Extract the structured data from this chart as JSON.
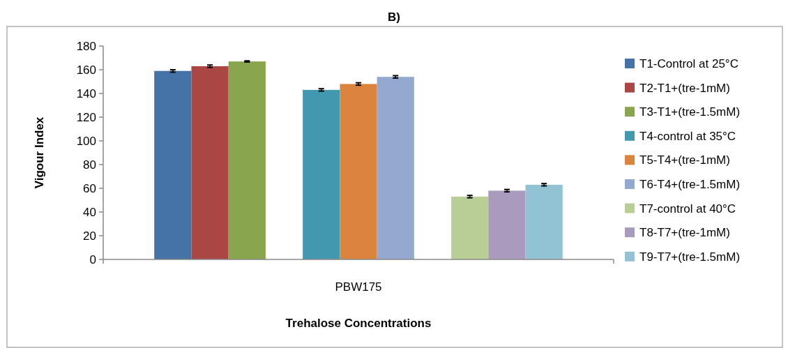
{
  "chart_data": {
    "type": "bar",
    "title": "B)",
    "xlabel": "Trehalose Concentrations",
    "ylabel": "Vigour Index",
    "categories": [
      "PBW175"
    ],
    "ylim": [
      0,
      180
    ],
    "yticks": [
      0,
      20,
      40,
      60,
      80,
      100,
      120,
      140,
      160,
      180
    ],
    "legend": "right",
    "grid": false,
    "series": [
      {
        "name": "T1-Control at 25°C",
        "color": "#4572a7",
        "values": [
          159
        ],
        "errors": [
          1
        ]
      },
      {
        "name": "T2-T1+(tre-1mM)",
        "color": "#aa4643",
        "values": [
          163
        ],
        "errors": [
          1
        ]
      },
      {
        "name": "T3-T1+(tre-1.5mM)",
        "color": "#89a54e",
        "values": [
          167
        ],
        "errors": [
          0.5
        ]
      },
      {
        "name": "T4-control at 35°C",
        "color": "#4198af",
        "values": [
          143
        ],
        "errors": [
          1
        ]
      },
      {
        "name": "T5-T4+(tre-1mM)",
        "color": "#db843d",
        "values": [
          148
        ],
        "errors": [
          1
        ]
      },
      {
        "name": "T6-T4+(tre-1.5mM)",
        "color": "#93a9cf",
        "values": [
          154
        ],
        "errors": [
          1
        ]
      },
      {
        "name": "T7-control at 40°C",
        "color": "#b9cd96",
        "values": [
          53
        ],
        "errors": [
          1
        ]
      },
      {
        "name": "T8-T7+(tre-1mM)",
        "color": "#a99bbd",
        "values": [
          58
        ],
        "errors": [
          1
        ]
      },
      {
        "name": "T9-T7+(tre-1.5mM)",
        "color": "#92c3d4",
        "values": [
          63
        ],
        "errors": [
          1
        ]
      }
    ]
  }
}
